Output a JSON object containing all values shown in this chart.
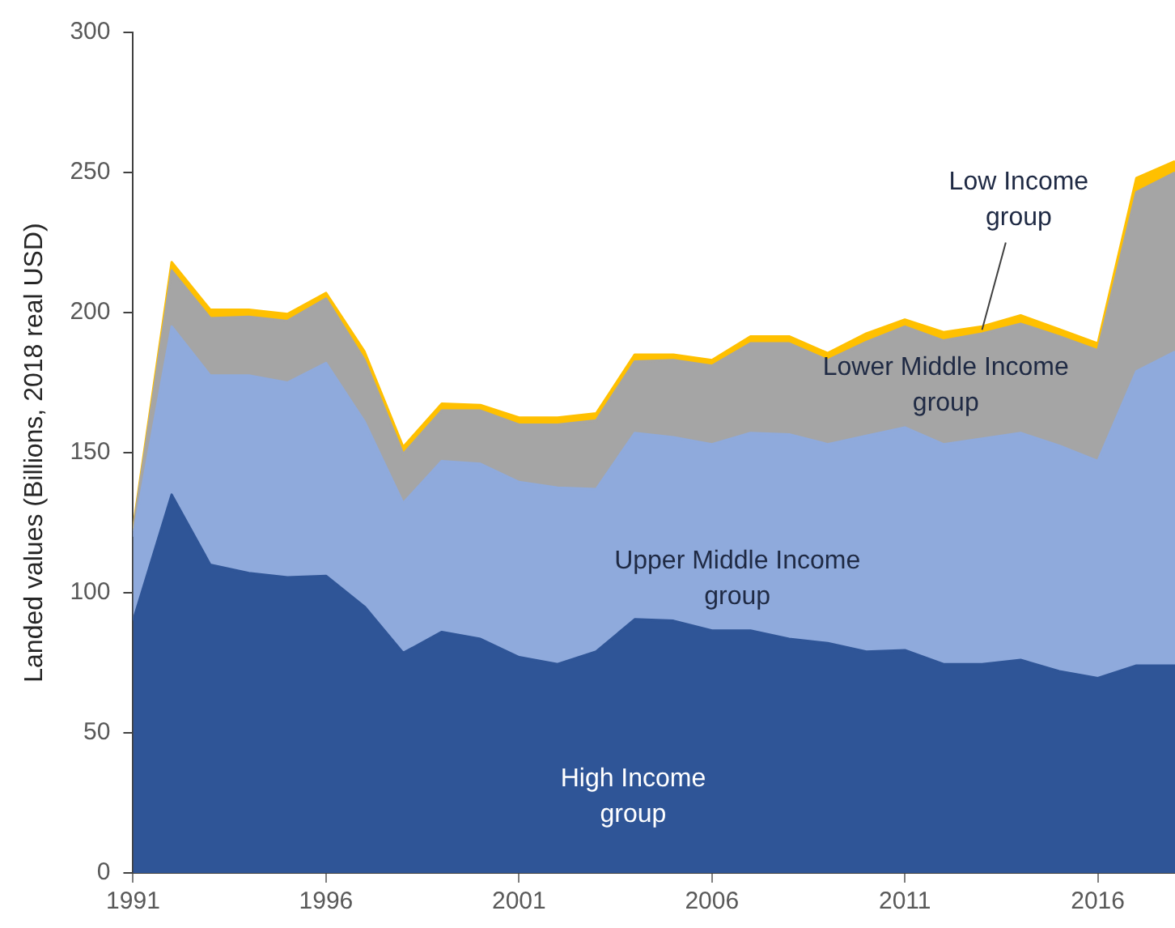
{
  "chart_data": {
    "type": "area",
    "stacked": true,
    "ylabel": "Landed values (Billions, 2018 real USD)",
    "x": [
      1991,
      1992,
      1993,
      1994,
      1995,
      1996,
      1997,
      1998,
      1999,
      2000,
      2001,
      2002,
      2003,
      2004,
      2005,
      2006,
      2007,
      2008,
      2009,
      2010,
      2011,
      2012,
      2013,
      2014,
      2015,
      2016,
      2017,
      2018
    ],
    "xlim": [
      1991,
      2018
    ],
    "xticks": [
      1991,
      1996,
      2001,
      2006,
      2011,
      2016
    ],
    "ylim": [
      0,
      300
    ],
    "yticks": [
      0,
      50,
      100,
      150,
      200,
      250,
      300
    ],
    "grid": false,
    "legend": false,
    "marker": "none",
    "series": [
      {
        "name": "High Income group",
        "color": "#2f5597",
        "values": [
          90,
          135,
          110,
          107,
          105.5,
          106,
          95,
          78.5,
          86,
          83.5,
          77,
          74.5,
          79,
          90.5,
          90,
          86.5,
          86.5,
          83.5,
          82,
          79,
          79.5,
          74.5,
          74.5,
          76,
          72,
          69.5,
          74,
          74
        ]
      },
      {
        "name": "Upper Middle Income group",
        "color": "#8faadc",
        "values": [
          30,
          60,
          67.5,
          70.5,
          69.5,
          76,
          66,
          53.5,
          61,
          62.5,
          62.5,
          63,
          58,
          66.5,
          65.5,
          66.5,
          70.5,
          73,
          71,
          77,
          79.5,
          78.5,
          80.5,
          81,
          80.5,
          77.5,
          105,
          112
        ]
      },
      {
        "name": "Lower Middle Income group",
        "color": "#a5a5a5",
        "values": [
          2,
          20,
          20.5,
          21,
          22,
          23,
          22,
          17.5,
          18,
          19,
          20.5,
          22.5,
          24.5,
          25.5,
          27.5,
          28,
          32,
          32.5,
          30,
          33.5,
          36,
          37,
          37.5,
          39,
          39,
          39.5,
          64,
          64
        ]
      },
      {
        "name": "Low Income group",
        "color": "#ffc000",
        "values": [
          1,
          3,
          3,
          2.5,
          2.5,
          2,
          3,
          2.5,
          2.5,
          2,
          2.5,
          2.5,
          2.5,
          2.5,
          2,
          2,
          2.5,
          2.5,
          2.5,
          3,
          2.5,
          3,
          2.5,
          3,
          2.5,
          2.5,
          5,
          4
        ]
      }
    ]
  }
}
